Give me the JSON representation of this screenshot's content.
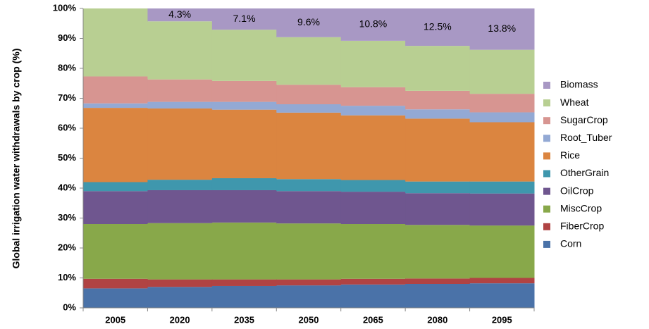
{
  "chart_data": {
    "type": "stacked-bar",
    "ylabel": "Global irrigation water withdrawals by crop (%)",
    "categories": [
      "2005",
      "2020",
      "2035",
      "2050",
      "2065",
      "2080",
      "2095"
    ],
    "series": [
      {
        "name": "Corn",
        "color": "#4a72a8",
        "values": [
          6.5,
          7,
          7.3,
          7.5,
          7.8,
          8,
          8.2
        ]
      },
      {
        "name": "FiberCrop",
        "color": "#b04343",
        "values": [
          3.2,
          2.5,
          2.2,
          2,
          1.9,
          1.8,
          1.8
        ]
      },
      {
        "name": "MiscCrop",
        "color": "#88a84a",
        "values": [
          18.3,
          18.8,
          19,
          18.7,
          18.3,
          17.9,
          17.5
        ]
      },
      {
        "name": "OilCrop",
        "color": "#6f568f",
        "values": [
          11,
          11,
          10.8,
          10.8,
          10.8,
          10.6,
          10.7
        ]
      },
      {
        "name": "OtherGrain",
        "color": "#3f97ad",
        "values": [
          3,
          3.5,
          4,
          4,
          3.9,
          3.9,
          4
        ]
      },
      {
        "name": "Rice",
        "color": "#db8540",
        "values": [
          24.8,
          23.8,
          22.9,
          22.2,
          21.6,
          21,
          19.8
        ]
      },
      {
        "name": "Root_Tuber",
        "color": "#93a9d4",
        "values": [
          1.5,
          2.2,
          2.6,
          2.8,
          3.2,
          3.1,
          3.3
        ]
      },
      {
        "name": "SugarCrop",
        "color": "#d79591",
        "values": [
          9,
          7.5,
          7,
          6.5,
          6.2,
          6.2,
          6.2
        ]
      },
      {
        "name": "Wheat",
        "color": "#b8cf92",
        "values": [
          22.7,
          19.4,
          17.1,
          15.9,
          15.5,
          15,
          14.7
        ]
      },
      {
        "name": "Biomass",
        "color": "#a898c4",
        "values": [
          0,
          4.3,
          7.1,
          9.6,
          10.8,
          12.5,
          13.8
        ],
        "value_labels": [
          null,
          "4.3%",
          "7.1%",
          "9.6%",
          "10.8%",
          "12.5%",
          "13.8%"
        ]
      }
    ],
    "ylim": [
      0,
      100
    ],
    "yticks": [
      {
        "value": 0,
        "label": "0%"
      },
      {
        "value": 10,
        "label": "10%"
      },
      {
        "value": 20,
        "label": "20%"
      },
      {
        "value": 30,
        "label": "30%"
      },
      {
        "value": 40,
        "label": "40%"
      },
      {
        "value": 50,
        "label": "50%"
      },
      {
        "value": 60,
        "label": "60%"
      },
      {
        "value": 70,
        "label": "70%"
      },
      {
        "value": 80,
        "label": "80%"
      },
      {
        "value": 90,
        "label": "90%"
      },
      {
        "value": 100,
        "label": "100%"
      }
    ],
    "legend": "right"
  }
}
